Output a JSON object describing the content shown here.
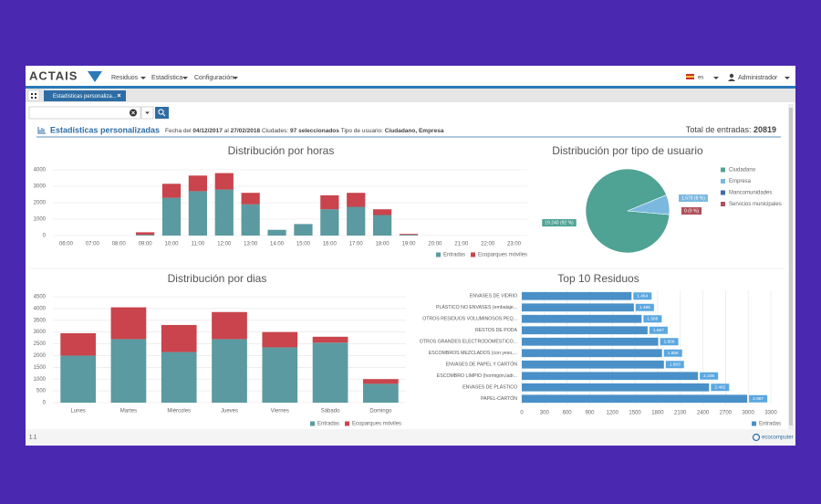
{
  "header": {
    "logo": "ACTAIS",
    "menu": [
      "Residuos",
      "Estadística",
      "Configuración"
    ],
    "language": "es",
    "user": "Administrador"
  },
  "tab": "Estadísticas personaliza...",
  "summary": {
    "title": "Estadísticas personalizadas",
    "date_prefix": "Fecha del",
    "date_from": "04/12/2017",
    "date_sep": "al",
    "date_to": "27/02/2018",
    "cities_label": "Ciudades:",
    "cities": "97 seleccionados",
    "user_type_label": "Tipo de usuario:",
    "user_types": "Ciudadano, Empresa",
    "total_label": "Total de entradas:",
    "total": 20819
  },
  "footer": {
    "version": "1.1",
    "brand": "ecocomputer"
  },
  "chart_data": [
    {
      "type": "bar",
      "stacked": true,
      "title": "Distribución por horas",
      "categories": [
        "06:00",
        "07:00",
        "08:00",
        "09:00",
        "10:00",
        "11:00",
        "12:00",
        "13:00",
        "14:00",
        "15:00",
        "16:00",
        "17:00",
        "18:00",
        "19:00",
        "20:00",
        "21:00",
        "22:00",
        "23:00"
      ],
      "series": [
        {
          "name": "Entradas",
          "color": "#5b9aa0",
          "values": [
            0,
            0,
            0,
            50,
            2300,
            2700,
            2800,
            1900,
            350,
            700,
            1600,
            1750,
            1250,
            50,
            0,
            0,
            0,
            0
          ]
        },
        {
          "name": "Ecoparques móviles",
          "color": "#c9444c",
          "values": [
            0,
            0,
            0,
            150,
            850,
            950,
            1000,
            700,
            0,
            0,
            850,
            850,
            350,
            50,
            0,
            0,
            0,
            0
          ]
        }
      ],
      "ylim": [
        0,
        4000
      ],
      "yticks": [
        0,
        1000,
        2000,
        3000,
        4000
      ],
      "grid": true,
      "legend": "bottom-right"
    },
    {
      "type": "pie",
      "title": "Distribución por tipo de usuario",
      "categories": [
        "Ciudadano",
        "Empresa",
        "Mancomunidades",
        "Servicios municipales"
      ],
      "values": [
        19240,
        1579,
        0,
        0
      ],
      "value_labels": [
        "19.240 (92 %)",
        "1.579 (8 %)",
        null,
        "0 (0 %)"
      ],
      "colors": [
        "#4fa394",
        "#7ab8e0",
        "#3a6ea5",
        "#b0505a"
      ],
      "legend": "right"
    },
    {
      "type": "bar",
      "stacked": true,
      "title": "Distribución por dias",
      "categories": [
        "Lunes",
        "Martes",
        "Miércoles",
        "Jueves",
        "Viernes",
        "Sábado",
        "Domingo"
      ],
      "series": [
        {
          "name": "Entradas",
          "color": "#5b9aa0",
          "values": [
            2000,
            2700,
            2150,
            2700,
            2350,
            2550,
            800
          ]
        },
        {
          "name": "Ecoparques móviles",
          "color": "#c9444c",
          "values": [
            950,
            1350,
            1150,
            1150,
            650,
            250,
            200
          ]
        }
      ],
      "ylim": [
        0,
        4500
      ],
      "yticks": [
        0,
        500,
        1000,
        1500,
        2000,
        2500,
        3000,
        3500,
        4000,
        4500
      ],
      "grid": true,
      "legend": "bottom"
    },
    {
      "type": "barh",
      "title": "Top 10 Residuos",
      "categories": [
        "ENVASES DE VIDRIO",
        "PLÁSTICO NO ENVASES (embalaje...",
        "OTROS RESIDUOS VOLUMINOSOS PEQ...",
        "RESTOS DE PODA",
        "OTROS GRANDES ELECTRODOMÉSTICO...",
        "ESCOMBROS MEZCLADOS (con yeso,...",
        "ENVASES DE PAPEL Y CARTÓN",
        "ESCOMBRO LIMPIO (hormigón,ladr...",
        "ENVASES DE PLÁSTICO",
        "PAPEL-CARTÓN"
      ],
      "series": [
        {
          "name": "Entradas",
          "color": "#4a90c8",
          "values": [
            1454,
            1485,
            1588,
            1667,
            1808,
            1858,
            1883,
            2335,
            2482,
            2987
          ],
          "value_labels": [
            "1.454",
            "1.485",
            "1.588",
            "1.667",
            "1.808",
            "1.858",
            "1.883",
            "2.335",
            "2.482",
            "2.987"
          ]
        }
      ],
      "xlim": [
        0,
        3300
      ],
      "xticks": [
        0,
        300,
        600,
        900,
        1200,
        1500,
        1800,
        2100,
        2400,
        2700,
        3000,
        3300
      ],
      "grid": true,
      "legend": "bottom-right"
    }
  ]
}
